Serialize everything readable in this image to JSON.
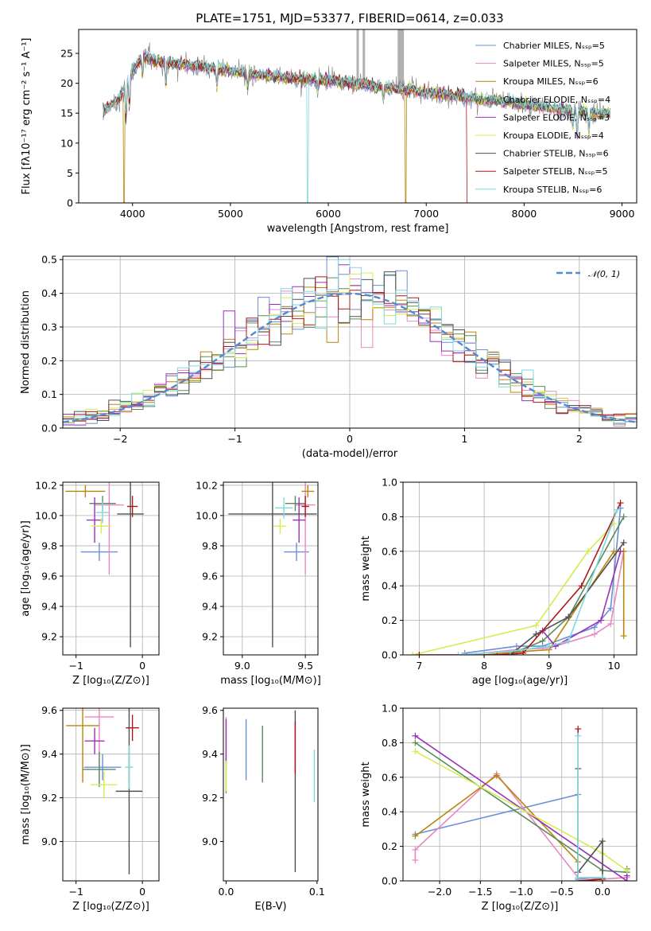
{
  "colors": [
    "#6a8fdb",
    "#e987c4",
    "#b8860b",
    "#5a8a5a",
    "#9b30b8",
    "#d4ec50",
    "#505050",
    "#b01818",
    "#7fd8e0"
  ],
  "chart_data": [
    {
      "id": "spectrum",
      "type": "line",
      "title": "PLATE=1751, MJD=53377, FIBERID=0614, z=0.033",
      "xlabel": "wavelength [Angstrom, rest frame]",
      "ylabel": "Flux [fλ10⁻¹⁷ erg cm⁻² s⁻¹ A⁻¹]",
      "xlim": [
        3450,
        9150
      ],
      "ylim": [
        0,
        29
      ],
      "xticks": [
        4000,
        5000,
        6000,
        7000,
        8000,
        9000
      ],
      "yticks": [
        0,
        5,
        10,
        15,
        20,
        25
      ],
      "grid": false,
      "legend_position": "top-right",
      "series": [
        {
          "name": "Chabrier MILES, Nₛₛₚ=5"
        },
        {
          "name": "Salpeter MILES, Nₛₛₚ=5"
        },
        {
          "name": "Kroupa MILES, Nₛₛₚ=6"
        },
        {
          "name": "Chabrier ELODIE, Nₛₛₚ=4"
        },
        {
          "name": "Salpeter ELODIE, Nₛₛₚ=3"
        },
        {
          "name": "Kroupa ELODIE, Nₛₛₚ=4"
        },
        {
          "name": "Chabrier STELIB, Nₛₛₚ=6"
        },
        {
          "name": "Salpeter STELIB, Nₛₛₚ=5"
        },
        {
          "name": "Kroupa STELIB, Nₛₛₚ=6"
        }
      ],
      "continuum": [
        [
          3700,
          15.5
        ],
        [
          3850,
          17
        ],
        [
          4000,
          22
        ],
        [
          4100,
          24.5
        ],
        [
          4300,
          23.5
        ],
        [
          4600,
          23
        ],
        [
          5000,
          22
        ],
        [
          5500,
          21
        ],
        [
          6000,
          20.5
        ],
        [
          6500,
          19.5
        ],
        [
          7000,
          18.5
        ],
        [
          7500,
          17.5
        ],
        [
          8000,
          16.5
        ],
        [
          8500,
          15.5
        ],
        [
          8850,
          15
        ]
      ]
    },
    {
      "id": "residuals",
      "type": "histogram",
      "xlabel": "(data-model)/error",
      "ylabel": "Normed distribution",
      "xlim": [
        -2.5,
        2.5
      ],
      "ylim": [
        0,
        0.51
      ],
      "xticks": [
        -2,
        -1,
        0,
        1,
        2
      ],
      "yticks": [
        0.0,
        0.1,
        0.2,
        0.3,
        0.4,
        0.5
      ],
      "grid": true,
      "legend_position": "top-right",
      "reference_curve": {
        "name": "𝒩(0, 1)",
        "mean": 0,
        "sigma": 1
      },
      "bin_width": 0.1
    },
    {
      "id": "age-vs-Z",
      "type": "errorbar",
      "xlabel": "Z [log₁₀(Z/Z⊙)]",
      "ylabel": "age  [log₁₀(age/yr)]",
      "xlim": [
        -1.2,
        0.25
      ],
      "ylim": [
        9.08,
        10.22
      ],
      "xticks": [
        -1,
        0
      ],
      "yticks": [
        9.2,
        9.4,
        9.6,
        9.8,
        10.0,
        10.2
      ],
      "grid": true,
      "points": [
        {
          "x": -0.65,
          "xerr": 0.28,
          "y": 9.76,
          "yerr": 0.06
        },
        {
          "x": -0.5,
          "xerr": 0.22,
          "y": 10.07,
          "yerr": 0.46
        },
        {
          "x": -0.86,
          "xerr": 0.3,
          "y": 10.16,
          "yerr": 0.04
        },
        {
          "x": -0.6,
          "xerr": 0.2,
          "y": 10.08,
          "yerr": 0.05
        },
        {
          "x": -0.72,
          "xerr": 0.12,
          "y": 9.97,
          "yerr": 0.15
        },
        {
          "x": -0.62,
          "xerr": 0.15,
          "y": 9.93,
          "yerr": 0.05
        },
        {
          "x": -0.18,
          "xerr": 0.2,
          "y": 10.01,
          "yerr": 0.88
        },
        {
          "x": -0.15,
          "xerr": 0.08,
          "y": 10.06,
          "yerr": 0.07
        },
        {
          "x": -0.6,
          "xerr": 0.1,
          "y": 10.02,
          "yerr": 0.07
        }
      ]
    },
    {
      "id": "age-vs-mass",
      "type": "errorbar",
      "xlabel": "mass [log₁₀(M/M⊙)]",
      "ylabel": "",
      "xlim": [
        8.85,
        9.6
      ],
      "ylim": [
        9.08,
        10.22
      ],
      "xticks": [
        9.0,
        9.5
      ],
      "yticks": [
        9.2,
        9.4,
        9.6,
        9.8,
        10.0,
        10.2
      ],
      "grid": true,
      "points": [
        {
          "x": 9.43,
          "xerr": 0.1,
          "y": 9.76,
          "yerr": 0.06
        },
        {
          "x": 9.5,
          "xerr": 0.08,
          "y": 10.07,
          "yerr": 0.46
        },
        {
          "x": 9.52,
          "xerr": 0.05,
          "y": 10.16,
          "yerr": 0.04
        },
        {
          "x": 9.42,
          "xerr": 0.08,
          "y": 10.08,
          "yerr": 0.05
        },
        {
          "x": 9.45,
          "xerr": 0.05,
          "y": 9.97,
          "yerr": 0.15
        },
        {
          "x": 9.3,
          "xerr": 0.05,
          "y": 9.93,
          "yerr": 0.05
        },
        {
          "x": 9.24,
          "xerr": 0.35,
          "y": 10.01,
          "yerr": 0.88
        },
        {
          "x": 9.5,
          "xerr": 0.03,
          "y": 10.06,
          "yerr": 0.07
        },
        {
          "x": 9.33,
          "xerr": 0.07,
          "y": 10.05,
          "yerr": 0.07
        }
      ]
    },
    {
      "id": "massweight-vs-age",
      "type": "line",
      "xlabel": "age  [log₁₀(age/yr)]",
      "ylabel": "mass weight",
      "xlim": [
        6.75,
        10.35
      ],
      "ylim": [
        0,
        1.0
      ],
      "xticks": [
        7,
        8,
        9,
        10
      ],
      "yticks": [
        0.0,
        0.2,
        0.4,
        0.6,
        0.8,
        1.0
      ],
      "grid": true,
      "series": [
        {
          "x": [
            7.7,
            8.5,
            8.9,
            9.7,
            9.95,
            10.1
          ],
          "y": [
            0.01,
            0.05,
            0.05,
            0.16,
            0.27,
            0.85
          ]
        },
        {
          "x": [
            7.7,
            8.5,
            9.0,
            9.7,
            9.95,
            10.15
          ],
          "y": [
            0.0,
            0.03,
            0.04,
            0.12,
            0.18,
            0.6
          ]
        },
        {
          "x": [
            8.0,
            8.6,
            9.0,
            10.0,
            10.15,
            10.15
          ],
          "y": [
            0.0,
            0.02,
            0.03,
            0.6,
            0.6,
            0.11
          ]
        },
        {
          "x": [
            8.5,
            8.9,
            9.3,
            10.15
          ],
          "y": [
            0.02,
            0.08,
            0.22,
            0.8
          ]
        },
        {
          "x": [
            8.9,
            9.1,
            9.8,
            10.1
          ],
          "y": [
            0.14,
            0.05,
            0.2,
            0.6
          ]
        },
        {
          "x": [
            6.9,
            8.8,
            9.6,
            10.0
          ],
          "y": [
            0.0,
            0.17,
            0.6,
            0.76
          ]
        },
        {
          "x": [
            8.4,
            8.8,
            9.3,
            10.15
          ],
          "y": [
            0.0,
            0.12,
            0.22,
            0.65
          ]
        },
        {
          "x": [
            7.0,
            8.2,
            8.6,
            9.5,
            10.1
          ],
          "y": [
            0.0,
            0.0,
            0.01,
            0.4,
            0.88
          ]
        },
        {
          "x": [
            7.6,
            8.4,
            9.0,
            9.3,
            10.05
          ],
          "y": [
            0.0,
            0.02,
            0.05,
            0.08,
            0.84
          ]
        }
      ]
    },
    {
      "id": "mass-vs-Z",
      "type": "errorbar",
      "xlabel": "Z [log₁₀(Z/Z⊙)]",
      "ylabel": "mass [log₁₀(M/M⊙)]",
      "xlim": [
        -1.2,
        0.25
      ],
      "ylim": [
        8.82,
        9.61
      ],
      "xticks": [
        -1,
        0
      ],
      "yticks": [
        9.0,
        9.2,
        9.4,
        9.6
      ],
      "grid": true,
      "points": [
        {
          "x": -0.6,
          "xerr": 0.28,
          "y": 9.34,
          "yerr": 0.06
        },
        {
          "x": -0.65,
          "xerr": 0.22,
          "y": 9.57,
          "yerr": 0.3
        },
        {
          "x": -0.9,
          "xerr": 0.25,
          "y": 9.53,
          "yerr": 0.26
        },
        {
          "x": -0.65,
          "xerr": 0.25,
          "y": 9.33,
          "yerr": 0.08
        },
        {
          "x": -0.72,
          "xerr": 0.15,
          "y": 9.46,
          "yerr": 0.06
        },
        {
          "x": -0.58,
          "xerr": 0.2,
          "y": 9.26,
          "yerr": 0.06
        },
        {
          "x": -0.2,
          "xerr": 0.2,
          "y": 9.23,
          "yerr": 0.38
        },
        {
          "x": -0.15,
          "xerr": 0.1,
          "y": 9.52,
          "yerr": 0.06
        },
        {
          "x": -0.2,
          "xerr": 0.06,
          "y": 9.34,
          "yerr": 0.1
        }
      ]
    },
    {
      "id": "mass-vs-EBV",
      "type": "errorbar",
      "xlabel": "E(B-V)",
      "ylabel": "",
      "xlim": [
        -0.003,
        0.101
      ],
      "ylim": [
        8.82,
        9.61
      ],
      "xticks": [
        0.0,
        0.1
      ],
      "yticks": [
        9.0,
        9.2,
        9.4,
        9.6
      ],
      "grid": false,
      "points": [
        {
          "x": 0.022,
          "y": 9.42,
          "yerr": 0.14
        },
        {
          "x": 0.0,
          "y": 9.45,
          "yerr": 0.12
        },
        {
          "x": 0.0,
          "y": 9.3,
          "yerr": 0.08
        },
        {
          "x": 0.04,
          "y": 9.4,
          "yerr": 0.13
        },
        {
          "x": 0.0,
          "y": 9.46,
          "yerr": 0.1
        },
        {
          "x": 0.0,
          "y": 9.3,
          "yerr": 0.07
        },
        {
          "x": 0.076,
          "y": 9.23,
          "yerr": 0.37
        },
        {
          "x": 0.076,
          "y": 9.43,
          "yerr": 0.12
        },
        {
          "x": 0.097,
          "y": 9.3,
          "yerr": 0.12
        }
      ]
    },
    {
      "id": "massweight-vs-Z",
      "type": "line",
      "xlabel": "Z [log₁₀(Z/Z⊙)]",
      "ylabel": "mass weight",
      "xlim": [
        -2.45,
        0.42
      ],
      "ylim": [
        0,
        1.0
      ],
      "xticks": [
        -2.0,
        -1.5,
        -1.0,
        -0.5,
        0.0
      ],
      "yticks": [
        0.0,
        0.2,
        0.4,
        0.6,
        0.8,
        1.0
      ],
      "grid": true,
      "series": [
        {
          "x": [
            -2.3,
            -0.3,
            -0.3,
            0.0,
            0.0
          ],
          "y": [
            0.27,
            0.5,
            0.01,
            0.02,
            0.0
          ]
        },
        {
          "x": [
            -2.3,
            -2.3,
            -1.3,
            -0.3,
            0.0,
            0.3
          ],
          "y": [
            0.12,
            0.18,
            0.62,
            0.02,
            0.01,
            0.02
          ]
        },
        {
          "x": [
            -2.3,
            -1.3,
            -0.3,
            -0.3,
            0.0
          ],
          "y": [
            0.26,
            0.61,
            0.11,
            0.0,
            0.01
          ]
        },
        {
          "x": [
            -2.3,
            0.0,
            0.3,
            0.3
          ],
          "y": [
            0.8,
            0.06,
            0.05,
            0.07
          ]
        },
        {
          "x": [
            -2.3,
            0.3,
            0.3
          ],
          "y": [
            0.84,
            0.0,
            0.03
          ]
        },
        {
          "x": [
            -2.3,
            0.0,
            0.3
          ],
          "y": [
            0.75,
            0.16,
            0.06
          ]
        },
        {
          "x": [
            -0.3,
            -0.3,
            0.0,
            0.0
          ],
          "y": [
            0.65,
            0.05,
            0.23,
            0.0
          ]
        },
        {
          "x": [
            -0.3,
            -0.3,
            0.0
          ],
          "y": [
            0.88,
            0.0,
            0.01
          ]
        },
        {
          "x": [
            -0.3,
            -0.3,
            0.0
          ],
          "y": [
            0.84,
            0.02,
            0.02
          ]
        }
      ]
    }
  ]
}
